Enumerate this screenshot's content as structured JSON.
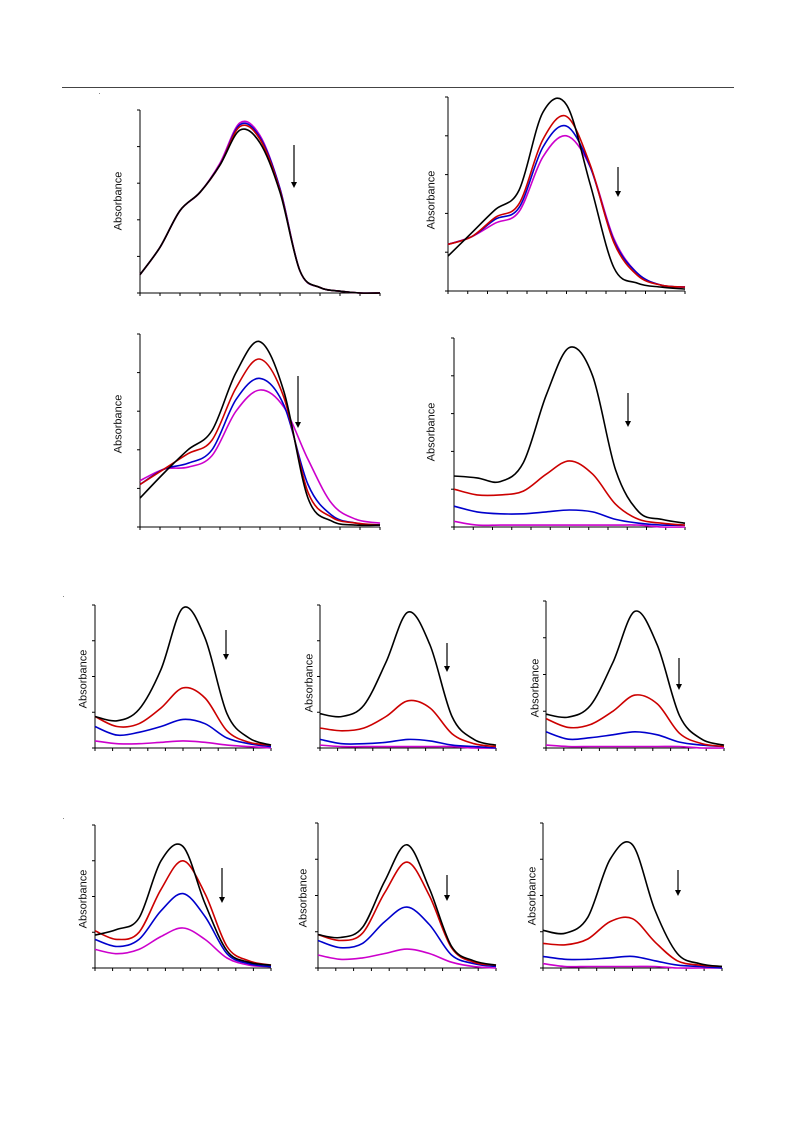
{
  "chart_data": [
    {
      "id": "p1",
      "type": "line",
      "ylabel": "Absorbance",
      "arrow": "down",
      "series": [
        {
          "color": "#000000",
          "values": [
            0.1,
            0.25,
            0.45,
            0.55,
            0.7,
            0.89,
            0.82,
            0.55,
            0.12,
            0.03,
            0.01,
            0.0,
            0.0
          ]
        },
        {
          "color": "#cc0000",
          "values": [
            0.1,
            0.25,
            0.45,
            0.55,
            0.7,
            0.91,
            0.84,
            0.56,
            0.12,
            0.03,
            0.01,
            0.0,
            0.0
          ]
        },
        {
          "color": "#0000cc",
          "values": [
            0.1,
            0.25,
            0.45,
            0.55,
            0.7,
            0.92,
            0.85,
            0.57,
            0.12,
            0.03,
            0.01,
            0.0,
            0.0
          ]
        },
        {
          "color": "#cc00cc",
          "values": [
            0.1,
            0.25,
            0.45,
            0.55,
            0.71,
            0.93,
            0.86,
            0.57,
            0.12,
            0.03,
            0.01,
            0.0,
            0.0
          ]
        }
      ]
    },
    {
      "id": "p2",
      "type": "line",
      "ylabel": "Absorbance",
      "arrow": "down",
      "series": [
        {
          "color": "#000000",
          "values": [
            0.18,
            0.3,
            0.42,
            0.52,
            0.92,
            0.96,
            0.55,
            0.12,
            0.04,
            0.02,
            0.01
          ]
        },
        {
          "color": "#cc0000",
          "values": [
            0.24,
            0.28,
            0.38,
            0.45,
            0.78,
            0.9,
            0.65,
            0.25,
            0.08,
            0.03,
            0.02
          ]
        },
        {
          "color": "#0000cc",
          "values": [
            0.24,
            0.28,
            0.37,
            0.43,
            0.74,
            0.85,
            0.64,
            0.26,
            0.09,
            0.03,
            0.02
          ]
        },
        {
          "color": "#cc00cc",
          "values": [
            0.24,
            0.28,
            0.35,
            0.41,
            0.69,
            0.8,
            0.64,
            0.27,
            0.09,
            0.03,
            0.02
          ]
        }
      ]
    },
    {
      "id": "p3",
      "type": "line",
      "ylabel": "Absorbance",
      "arrow": "down",
      "series": [
        {
          "color": "#000000",
          "values": [
            0.15,
            0.28,
            0.4,
            0.5,
            0.8,
            0.96,
            0.7,
            0.15,
            0.03,
            0.01,
            0.01
          ]
        },
        {
          "color": "#cc0000",
          "values": [
            0.22,
            0.3,
            0.38,
            0.45,
            0.72,
            0.87,
            0.67,
            0.18,
            0.05,
            0.02,
            0.01
          ]
        },
        {
          "color": "#0000cc",
          "values": [
            0.22,
            0.3,
            0.33,
            0.4,
            0.66,
            0.77,
            0.63,
            0.22,
            0.06,
            0.02,
            0.01
          ]
        },
        {
          "color": "#cc00cc",
          "values": [
            0.24,
            0.3,
            0.31,
            0.37,
            0.6,
            0.71,
            0.62,
            0.35,
            0.12,
            0.04,
            0.02
          ]
        }
      ]
    },
    {
      "id": "p4",
      "type": "line",
      "ylabel": "Absorbance",
      "arrow": "down",
      "series": [
        {
          "color": "#000000",
          "values": [
            0.27,
            0.26,
            0.24,
            0.34,
            0.7,
            0.95,
            0.8,
            0.3,
            0.08,
            0.04,
            0.02
          ]
        },
        {
          "color": "#cc0000",
          "values": [
            0.2,
            0.17,
            0.17,
            0.19,
            0.28,
            0.35,
            0.28,
            0.12,
            0.04,
            0.02,
            0.01
          ]
        },
        {
          "color": "#0000cc",
          "values": [
            0.11,
            0.08,
            0.07,
            0.07,
            0.08,
            0.09,
            0.08,
            0.04,
            0.02,
            0.01,
            0.01
          ]
        },
        {
          "color": "#cc00cc",
          "values": [
            0.03,
            0.01,
            0.01,
            0.01,
            0.01,
            0.01,
            0.01,
            0.01,
            0.01,
            0.0,
            0.0
          ]
        }
      ]
    },
    {
      "id": "p5",
      "type": "line",
      "ylabel": "Absorbance",
      "arrow": "down",
      "series": [
        {
          "color": "#000000",
          "values": [
            0.22,
            0.19,
            0.27,
            0.55,
            0.98,
            0.77,
            0.24,
            0.07,
            0.02
          ]
        },
        {
          "color": "#cc0000",
          "values": [
            0.22,
            0.15,
            0.17,
            0.28,
            0.42,
            0.35,
            0.12,
            0.04,
            0.02
          ]
        },
        {
          "color": "#0000cc",
          "values": [
            0.15,
            0.09,
            0.11,
            0.15,
            0.2,
            0.17,
            0.07,
            0.03,
            0.01
          ]
        },
        {
          "color": "#cc00cc",
          "values": [
            0.05,
            0.03,
            0.03,
            0.04,
            0.05,
            0.04,
            0.02,
            0.01,
            0.0
          ]
        }
      ]
    },
    {
      "id": "p6",
      "type": "line",
      "ylabel": "Absorbance",
      "arrow": "down",
      "series": [
        {
          "color": "#000000",
          "values": [
            0.24,
            0.22,
            0.3,
            0.6,
            0.95,
            0.72,
            0.22,
            0.06,
            0.02
          ]
        },
        {
          "color": "#cc0000",
          "values": [
            0.14,
            0.12,
            0.14,
            0.22,
            0.33,
            0.28,
            0.1,
            0.03,
            0.01
          ]
        },
        {
          "color": "#0000cc",
          "values": [
            0.06,
            0.03,
            0.03,
            0.04,
            0.06,
            0.05,
            0.02,
            0.01,
            0.0
          ]
        },
        {
          "color": "#cc00cc",
          "values": [
            0.02,
            0.01,
            0.01,
            0.01,
            0.01,
            0.01,
            0.01,
            0.0,
            0.0
          ]
        }
      ]
    },
    {
      "id": "p7",
      "type": "line",
      "ylabel": "Absorbance",
      "arrow": "down",
      "series": [
        {
          "color": "#000000",
          "values": [
            0.23,
            0.21,
            0.29,
            0.58,
            0.93,
            0.7,
            0.22,
            0.06,
            0.02
          ]
        },
        {
          "color": "#cc0000",
          "values": [
            0.2,
            0.14,
            0.16,
            0.25,
            0.36,
            0.3,
            0.1,
            0.03,
            0.01
          ]
        },
        {
          "color": "#0000cc",
          "values": [
            0.11,
            0.06,
            0.07,
            0.09,
            0.11,
            0.09,
            0.04,
            0.02,
            0.01
          ]
        },
        {
          "color": "#cc00cc",
          "values": [
            0.02,
            0.01,
            0.01,
            0.01,
            0.01,
            0.01,
            0.01,
            0.0,
            0.0
          ]
        }
      ]
    },
    {
      "id": "p8",
      "type": "line",
      "ylabel": "Absorbance",
      "arrow": "down",
      "series": [
        {
          "color": "#000000",
          "values": [
            0.23,
            0.27,
            0.35,
            0.75,
            0.85,
            0.45,
            0.12,
            0.04,
            0.02
          ]
        },
        {
          "color": "#cc0000",
          "values": [
            0.26,
            0.2,
            0.25,
            0.55,
            0.75,
            0.52,
            0.15,
            0.05,
            0.02
          ]
        },
        {
          "color": "#0000cc",
          "values": [
            0.2,
            0.15,
            0.2,
            0.4,
            0.52,
            0.36,
            0.1,
            0.03,
            0.01
          ]
        },
        {
          "color": "#cc00cc",
          "values": [
            0.13,
            0.1,
            0.13,
            0.22,
            0.28,
            0.2,
            0.07,
            0.02,
            0.01
          ]
        }
      ]
    },
    {
      "id": "p9",
      "type": "line",
      "ylabel": "Absorbance",
      "arrow": "down",
      "series": [
        {
          "color": "#000000",
          "values": [
            0.23,
            0.21,
            0.28,
            0.6,
            0.85,
            0.55,
            0.15,
            0.05,
            0.02
          ]
        },
        {
          "color": "#cc0000",
          "values": [
            0.23,
            0.19,
            0.24,
            0.52,
            0.73,
            0.5,
            0.14,
            0.04,
            0.02
          ]
        },
        {
          "color": "#0000cc",
          "values": [
            0.19,
            0.14,
            0.17,
            0.32,
            0.42,
            0.3,
            0.09,
            0.03,
            0.01
          ]
        },
        {
          "color": "#cc00cc",
          "values": [
            0.09,
            0.06,
            0.07,
            0.1,
            0.13,
            0.1,
            0.04,
            0.01,
            0.0
          ]
        }
      ]
    },
    {
      "id": "p10",
      "type": "line",
      "ylabel": "Absorbance",
      "arrow": "down",
      "series": [
        {
          "color": "#000000",
          "values": [
            0.26,
            0.24,
            0.35,
            0.75,
            0.85,
            0.4,
            0.1,
            0.03,
            0.01
          ]
        },
        {
          "color": "#cc0000",
          "values": [
            0.17,
            0.16,
            0.2,
            0.32,
            0.34,
            0.18,
            0.05,
            0.02,
            0.01
          ]
        },
        {
          "color": "#0000cc",
          "values": [
            0.08,
            0.06,
            0.06,
            0.07,
            0.08,
            0.05,
            0.02,
            0.01,
            0.0
          ]
        },
        {
          "color": "#cc00cc",
          "values": [
            0.03,
            0.01,
            0.01,
            0.01,
            0.01,
            0.01,
            0.0,
            0.0,
            0.0
          ]
        }
      ]
    }
  ]
}
